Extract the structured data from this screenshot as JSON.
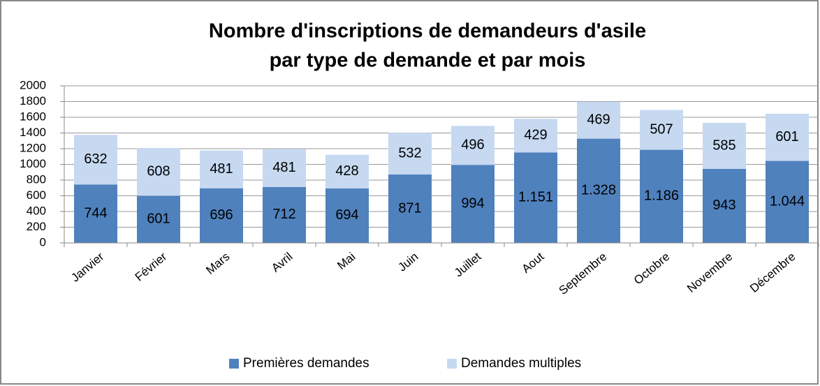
{
  "chart_data": {
    "type": "stacked_bar",
    "title": [
      "Nombre d'inscriptions de demandeurs d'asile",
      "par type de demande et par mois"
    ],
    "categories": [
      "Janvier",
      "Février",
      "Mars",
      "Avril",
      "Mai",
      "Juin",
      "Juillet",
      "Aout",
      "Septembre",
      "Octobre",
      "Novembre",
      "Décembre"
    ],
    "series": [
      {
        "name": "Premières demandes",
        "color": "#4f81bd",
        "values": [
          744,
          601,
          696,
          712,
          694,
          871,
          994,
          1151,
          1328,
          1186,
          943,
          1044
        ],
        "value_labels": [
          "744",
          "601",
          "696",
          "712",
          "694",
          "871",
          "994",
          "1.151",
          "1.328",
          "1.186",
          "943",
          "1.044"
        ]
      },
      {
        "name": "Demandes multiples",
        "color": "#c6d9f1",
        "values": [
          632,
          608,
          481,
          481,
          428,
          532,
          496,
          429,
          469,
          507,
          585,
          601
        ]
      }
    ],
    "ylim": [
      0,
      2000
    ],
    "yticks": [
      0,
      200,
      400,
      600,
      800,
      1000,
      1200,
      1400,
      1600,
      1800,
      2000
    ],
    "grid": true,
    "legend": "bottom"
  }
}
